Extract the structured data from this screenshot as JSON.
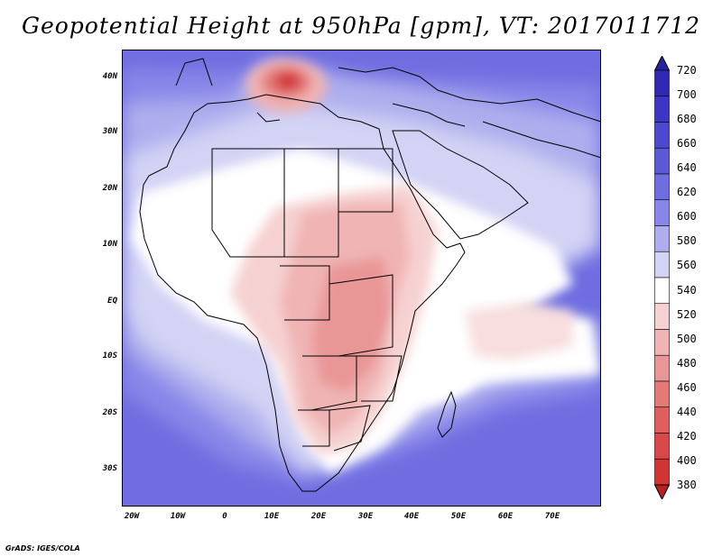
{
  "title": "Geopotential Height at 950hPa [gpm], VT: 2017011712",
  "map": {
    "region": "Africa and Middle East",
    "lat_labels": [
      "40N",
      "30N",
      "20N",
      "10N",
      "EQ",
      "10S",
      "20S",
      "30S"
    ],
    "lon_labels": [
      "20W",
      "10W",
      "0",
      "10E",
      "20E",
      "30E",
      "40E",
      "50E",
      "60E",
      "70E"
    ]
  },
  "colorbar": {
    "levels": [
      "720",
      "700",
      "680",
      "660",
      "640",
      "620",
      "600",
      "580",
      "560",
      "540",
      "520",
      "500",
      "480",
      "460",
      "440",
      "420",
      "400",
      "380"
    ],
    "colors": [
      "#27239e",
      "#3129b3",
      "#3d35c4",
      "#4d48cd",
      "#5c59d6",
      "#6f6de0",
      "#8887e9",
      "#aeaeee",
      "#d3d3f5",
      "#ffffff",
      "#f6d1d1",
      "#f0b4b4",
      "#e99696",
      "#e47979",
      "#df5e5e",
      "#d94848",
      "#d13434",
      "#b82020"
    ]
  },
  "credit": "GrADS: IGES/COLA"
}
